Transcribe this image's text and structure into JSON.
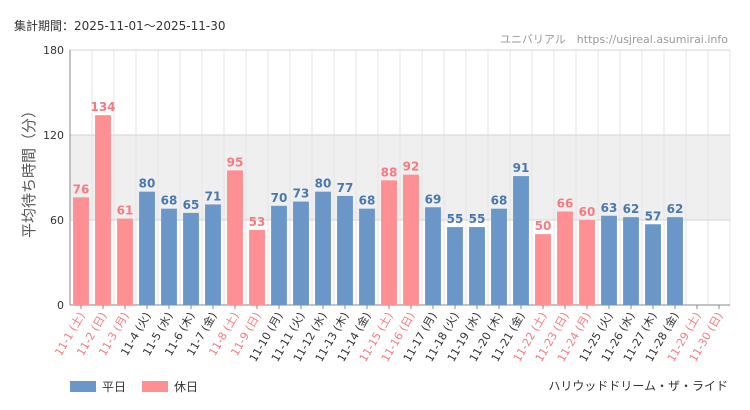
{
  "header": {
    "period": "集計期間：2025-11-01～2025-11-30",
    "site": "ユニバリアル　https://usjreal.asumirai.info"
  },
  "footer": {
    "ride": "ハリウッドドリーム・ザ・ライド"
  },
  "colors": {
    "weekday": "#6a97c8",
    "holiday": "#fe8f93",
    "weekday_text": "#4a78ad",
    "holiday_text": "#f47b80",
    "band": "#efefef"
  },
  "chart_data": {
    "type": "bar",
    "ylabel": "平均待ち時間（分）",
    "ylim": [
      0,
      180
    ],
    "yticks": [
      0,
      60,
      120,
      180
    ],
    "shaded_band": [
      60,
      120
    ],
    "legend": [
      {
        "name": "平日",
        "key": "weekday"
      },
      {
        "name": "休日",
        "key": "holiday"
      }
    ],
    "categories": [
      "11-1 (土)",
      "11-2 (日)",
      "11-3 (月)",
      "11-4 (火)",
      "11-5 (水)",
      "11-6 (木)",
      "11-7 (金)",
      "11-8 (土)",
      "11-9 (日)",
      "11-10 (月)",
      "11-11 (火)",
      "11-12 (水)",
      "11-13 (木)",
      "11-14 (金)",
      "11-15 (土)",
      "11-16 (日)",
      "11-17 (月)",
      "11-18 (火)",
      "11-19 (水)",
      "11-20 (木)",
      "11-21 (金)",
      "11-22 (土)",
      "11-23 (日)",
      "11-24 (月)",
      "11-25 (火)",
      "11-26 (水)",
      "11-27 (木)",
      "11-28 (金)",
      "11-29 (土)",
      "11-30 (日)"
    ],
    "values": [
      76,
      134,
      61,
      80,
      68,
      65,
      71,
      95,
      53,
      70,
      73,
      80,
      77,
      68,
      88,
      92,
      69,
      55,
      55,
      68,
      91,
      50,
      66,
      60,
      63,
      62,
      57,
      62,
      null,
      null
    ],
    "day_type": [
      "holiday",
      "holiday",
      "holiday",
      "weekday",
      "weekday",
      "weekday",
      "weekday",
      "holiday",
      "holiday",
      "weekday",
      "weekday",
      "weekday",
      "weekday",
      "weekday",
      "holiday",
      "holiday",
      "weekday",
      "weekday",
      "weekday",
      "weekday",
      "weekday",
      "holiday",
      "holiday",
      "holiday",
      "weekday",
      "weekday",
      "weekday",
      "weekday",
      "holiday",
      "holiday"
    ]
  }
}
